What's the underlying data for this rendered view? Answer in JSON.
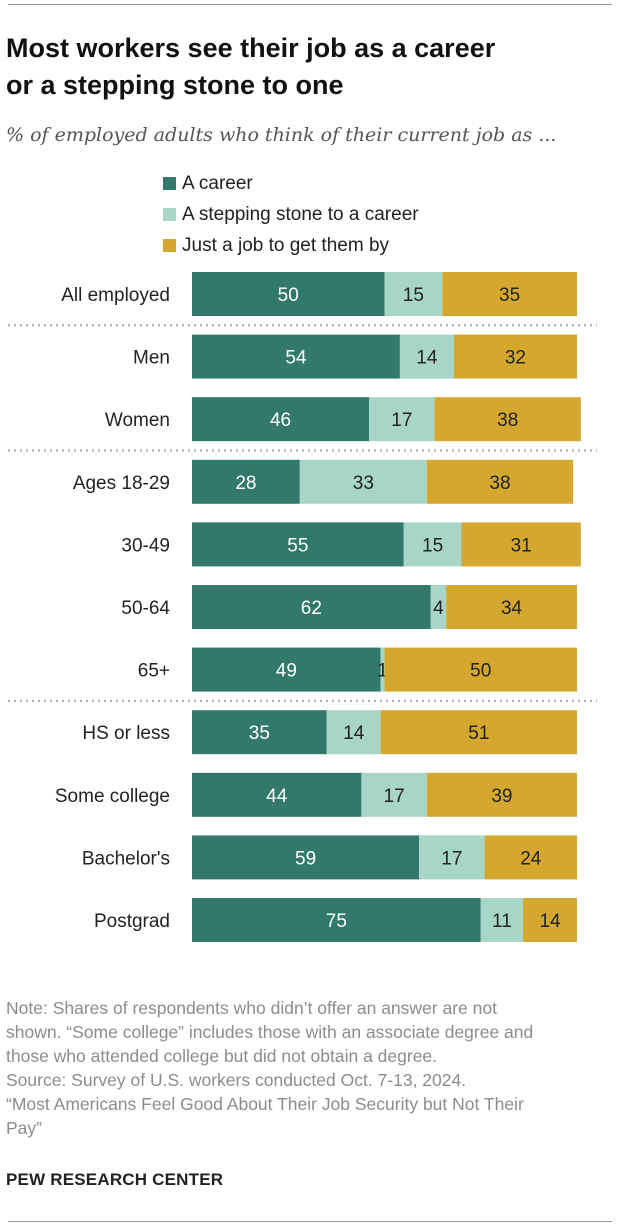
{
  "title_line1": "Most workers see their job as a career",
  "title_line2": "or a stepping stone to one",
  "subtitle": "% of employed adults who think of their current job as ...",
  "colors": {
    "career": "#33796b",
    "stepping": "#a7d6c9",
    "job": "#d4a82f"
  },
  "chart_data": {
    "type": "bar",
    "orientation": "horizontal",
    "stacked": true,
    "categories": [
      "All employed",
      "Men",
      "Women",
      "Ages 18-29",
      "30-49",
      "50-64",
      "65+",
      "HS or less",
      "Some college",
      "Bachelor's",
      "Postgrad"
    ],
    "series": [
      {
        "name": "A career",
        "values": [
          50,
          54,
          46,
          28,
          55,
          62,
          49,
          35,
          44,
          59,
          75
        ]
      },
      {
        "name": "A stepping stone to a career",
        "values": [
          15,
          14,
          17,
          33,
          15,
          4,
          1,
          14,
          17,
          17,
          11
        ]
      },
      {
        "name": "Just a job to get them by",
        "values": [
          35,
          32,
          38,
          38,
          31,
          34,
          50,
          51,
          39,
          24,
          14
        ]
      }
    ],
    "legend_position": "top",
    "xlim": [
      0,
      100
    ],
    "grid": false
  },
  "notes": [
    "Note: Shares of respondents who didn’t offer an answer are not",
    "shown. “Some college” includes those with an associate degree and",
    "those who attended college but did not obtain a degree.",
    "Source: Survey of U.S. workers conducted Oct. 7-13, 2024.",
    "“Most Americans Feel Good About Their Job Security but Not Their",
    "Pay”"
  ],
  "brand": "PEW RESEARCH CENTER"
}
